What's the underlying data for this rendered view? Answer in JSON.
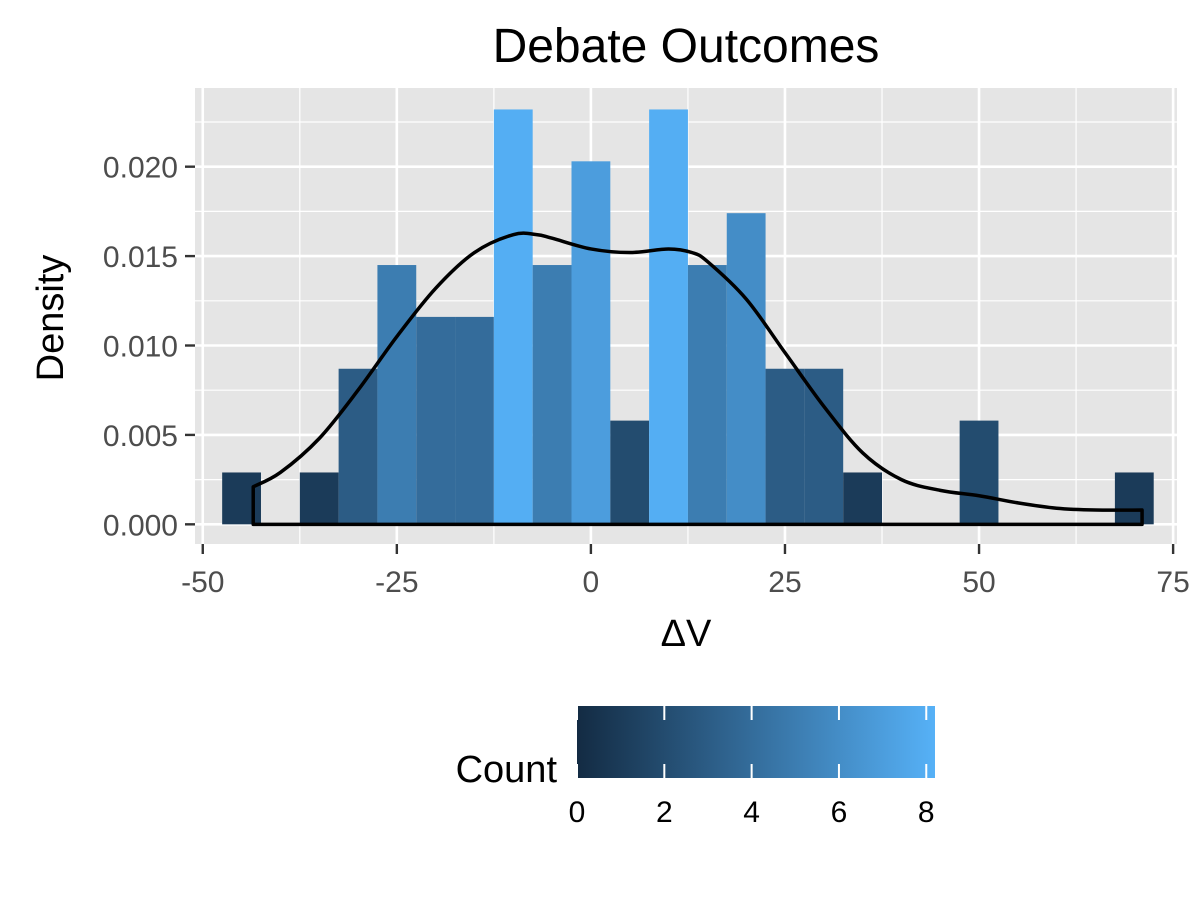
{
  "chart_data": {
    "type": "histogram",
    "title": "Debate Outcomes",
    "xlabel": "ΔV",
    "ylabel": "Density",
    "xlim": [
      -51,
      75.5
    ],
    "ylim": [
      -0.0011,
      0.0244
    ],
    "x_ticks": [
      -50,
      -25,
      0,
      25,
      50,
      75
    ],
    "x_tick_labels": [
      "-50",
      "-25",
      "0",
      "25",
      "50",
      "75"
    ],
    "y_ticks": [
      0,
      0.005,
      0.01,
      0.015,
      0.02
    ],
    "y_tick_labels": [
      "0.000",
      "0.005",
      "0.010",
      "0.015",
      "0.020"
    ],
    "bin_width": 5,
    "bins": [
      {
        "x0": -47.5,
        "x1": -42.5,
        "count": 1,
        "density": 0.0029
      },
      {
        "x0": -37.5,
        "x1": -32.5,
        "count": 1,
        "density": 0.0029
      },
      {
        "x0": -32.5,
        "x1": -27.5,
        "count": 3,
        "density": 0.0087
      },
      {
        "x0": -27.5,
        "x1": -22.5,
        "count": 5,
        "density": 0.0145
      },
      {
        "x0": -22.5,
        "x1": -17.5,
        "count": 4,
        "density": 0.0116
      },
      {
        "x0": -17.5,
        "x1": -12.5,
        "count": 4,
        "density": 0.0116
      },
      {
        "x0": -12.5,
        "x1": -7.5,
        "count": 8,
        "density": 0.0232
      },
      {
        "x0": -7.5,
        "x1": -2.5,
        "count": 5,
        "density": 0.0145
      },
      {
        "x0": -2.5,
        "x1": 2.5,
        "count": 7,
        "density": 0.0203
      },
      {
        "x0": 2.5,
        "x1": 7.5,
        "count": 2,
        "density": 0.0058
      },
      {
        "x0": 7.5,
        "x1": 12.5,
        "count": 8,
        "density": 0.0232
      },
      {
        "x0": 12.5,
        "x1": 17.5,
        "count": 5,
        "density": 0.0145
      },
      {
        "x0": 17.5,
        "x1": 22.5,
        "count": 6,
        "density": 0.0174
      },
      {
        "x0": 22.5,
        "x1": 27.5,
        "count": 3,
        "density": 0.0087
      },
      {
        "x0": 27.5,
        "x1": 32.5,
        "count": 3,
        "density": 0.0087
      },
      {
        "x0": 32.5,
        "x1": 37.5,
        "count": 1,
        "density": 0.0029
      },
      {
        "x0": 47.5,
        "x1": 52.5,
        "count": 2,
        "density": 0.0058
      },
      {
        "x0": 67.5,
        "x1": 72.5,
        "count": 1,
        "density": 0.0029
      }
    ],
    "density_curve": {
      "x": [
        -43.5,
        -40,
        -35,
        -30,
        -25,
        -20,
        -15,
        -10,
        -7,
        -5,
        0,
        5,
        10,
        13,
        15,
        20,
        25,
        30,
        35,
        40,
        45,
        50,
        55,
        60,
        65,
        71
      ],
      "y": [
        0.0021,
        0.0029,
        0.0048,
        0.0075,
        0.0105,
        0.0132,
        0.0152,
        0.0162,
        0.0162,
        0.016,
        0.0154,
        0.0152,
        0.0154,
        0.0152,
        0.0147,
        0.0126,
        0.0096,
        0.0066,
        0.004,
        0.0025,
        0.0019,
        0.0016,
        0.0012,
        0.0009,
        0.0008,
        0.0008
      ]
    },
    "grid": true,
    "legend": {
      "title": "Count",
      "position": "bottom",
      "ticks": [
        0,
        2,
        4,
        6,
        8
      ],
      "tick_labels": [
        "0",
        "2",
        "4",
        "6",
        "8"
      ],
      "range": [
        0,
        8.2
      ],
      "color_low": "#132b43",
      "color_high": "#56b1f7"
    },
    "colors": {
      "panel_bg": "#e5e5e5",
      "grid": "#ffffff",
      "curve": "#000000",
      "tick_text": "#4d4d4d"
    }
  }
}
